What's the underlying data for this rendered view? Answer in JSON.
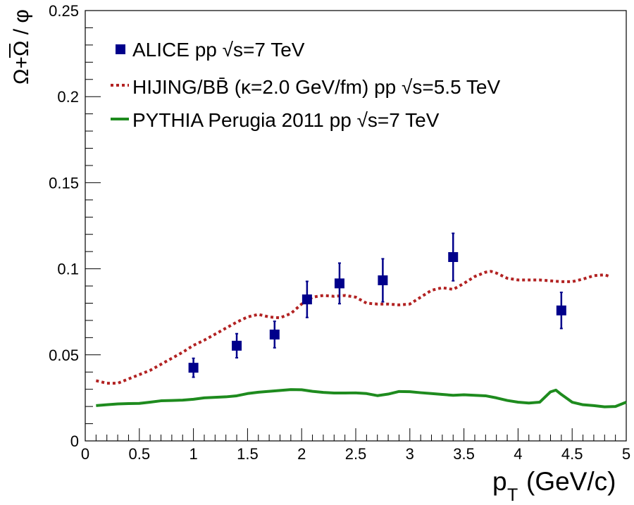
{
  "chart_data": {
    "type": "scatter",
    "title": "",
    "xlabel": "p_T (GeV/c)",
    "ylabel": "Ω+Ω̄ / φ",
    "xlim": [
      0,
      5
    ],
    "ylim": [
      0,
      0.25
    ],
    "x_ticks": [
      0,
      0.5,
      1,
      1.5,
      2,
      2.5,
      3,
      3.5,
      4,
      4.5,
      5
    ],
    "x_tick_labels": [
      "0",
      "0.5",
      "1",
      "1.5",
      "2",
      "2.5",
      "3",
      "3.5",
      "4",
      "4.5",
      "5"
    ],
    "y_ticks": [
      0,
      0.05,
      0.1,
      0.15,
      0.2,
      0.25
    ],
    "y_tick_labels": [
      "0",
      "0.05",
      "0.1",
      "0.15",
      "0.2",
      "0.25"
    ],
    "grid": false,
    "legend_position": "top-left",
    "series": [
      {
        "name": "ALICE pp √s=7 TeV",
        "kind": "points_with_error_bars",
        "color": "#00008b",
        "marker": "square",
        "x": [
          1.0,
          1.4,
          1.75,
          2.05,
          2.35,
          2.75,
          3.4,
          4.4
        ],
        "y": [
          0.0425,
          0.0553,
          0.0618,
          0.0822,
          0.0915,
          0.0933,
          0.1068,
          0.0758
        ],
        "yerr": [
          0.0055,
          0.007,
          0.0077,
          0.0105,
          0.0118,
          0.0125,
          0.0138,
          0.0105
        ]
      },
      {
        "name": "HIJING/BB̄ (κ=2.0 GeV/fm) pp √s=5.5 TeV",
        "kind": "line",
        "style": "dotted",
        "color": "#b22222",
        "x": [
          0.1,
          0.2,
          0.3,
          0.4,
          0.5,
          0.6,
          0.7,
          0.8,
          0.9,
          1.0,
          1.1,
          1.2,
          1.3,
          1.4,
          1.5,
          1.6,
          1.7,
          1.8,
          1.9,
          2.0,
          2.1,
          2.2,
          2.3,
          2.4,
          2.5,
          2.6,
          2.7,
          2.8,
          2.9,
          3.0,
          3.1,
          3.2,
          3.3,
          3.4,
          3.5,
          3.6,
          3.7,
          3.75,
          3.8,
          3.9,
          4.0,
          4.1,
          4.2,
          4.3,
          4.4,
          4.5,
          4.6,
          4.7,
          4.8,
          4.85
        ],
        "y": [
          0.035,
          0.0335,
          0.0335,
          0.036,
          0.0385,
          0.041,
          0.0445,
          0.048,
          0.0515,
          0.0555,
          0.0585,
          0.062,
          0.0655,
          0.069,
          0.072,
          0.0735,
          0.072,
          0.0715,
          0.074,
          0.0795,
          0.0835,
          0.0845,
          0.084,
          0.0845,
          0.0835,
          0.08,
          0.0795,
          0.0795,
          0.079,
          0.0795,
          0.0835,
          0.0875,
          0.089,
          0.088,
          0.0915,
          0.0955,
          0.098,
          0.0985,
          0.0975,
          0.0945,
          0.0935,
          0.0935,
          0.0935,
          0.093,
          0.0925,
          0.0925,
          0.094,
          0.096,
          0.0965,
          0.0955
        ]
      },
      {
        "name": "PYTHIA Perugia 2011 pp √s=7 TeV",
        "kind": "line",
        "style": "solid",
        "color": "#1e8b1e",
        "x": [
          0.1,
          0.2,
          0.3,
          0.4,
          0.5,
          0.6,
          0.7,
          0.8,
          0.9,
          1.0,
          1.1,
          1.2,
          1.3,
          1.4,
          1.5,
          1.6,
          1.7,
          1.8,
          1.9,
          2.0,
          2.1,
          2.2,
          2.3,
          2.4,
          2.5,
          2.6,
          2.7,
          2.8,
          2.9,
          3.0,
          3.1,
          3.2,
          3.3,
          3.4,
          3.5,
          3.6,
          3.7,
          3.8,
          3.9,
          4.0,
          4.1,
          4.2,
          4.25,
          4.3,
          4.35,
          4.4,
          4.5,
          4.6,
          4.7,
          4.8,
          4.9,
          5.0
        ],
        "y": [
          0.0205,
          0.021,
          0.0215,
          0.0217,
          0.0218,
          0.0225,
          0.0233,
          0.0235,
          0.0237,
          0.0242,
          0.025,
          0.0253,
          0.0256,
          0.0262,
          0.0275,
          0.0283,
          0.0288,
          0.0293,
          0.0298,
          0.0297,
          0.0288,
          0.0282,
          0.0278,
          0.0278,
          0.0279,
          0.0275,
          0.0263,
          0.0272,
          0.0287,
          0.0286,
          0.028,
          0.0275,
          0.027,
          0.0265,
          0.0268,
          0.0265,
          0.0262,
          0.025,
          0.0235,
          0.0225,
          0.022,
          0.0225,
          0.0255,
          0.0285,
          0.0295,
          0.027,
          0.0225,
          0.021,
          0.0205,
          0.0198,
          0.02,
          0.0225
        ]
      }
    ]
  }
}
